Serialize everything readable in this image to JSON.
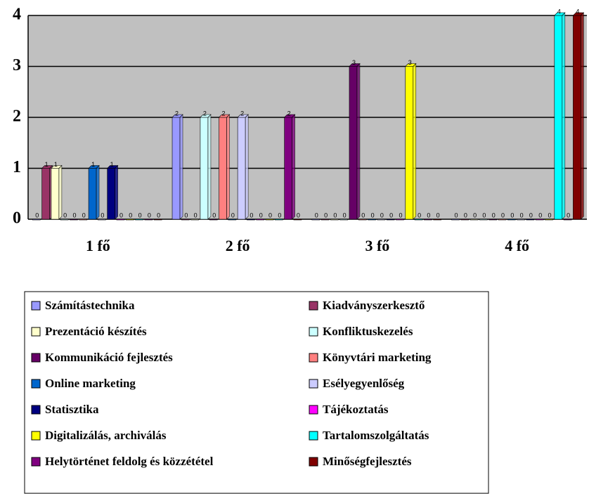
{
  "chart_data": {
    "type": "bar",
    "categories": [
      "1 fő",
      "2 fő",
      "3 fő",
      "4 fő"
    ],
    "ylim": [
      0,
      4
    ],
    "yticks": [
      0,
      1,
      2,
      3,
      4
    ],
    "grid": true,
    "series": [
      {
        "name": "Számítástechnika",
        "color": "#9999ff",
        "values": [
          0,
          2,
          0,
          0
        ]
      },
      {
        "name": "Kiadványszerkesztő",
        "color": "#993366",
        "values": [
          1,
          0,
          0,
          0
        ]
      },
      {
        "name": "Prezentáció készítés",
        "color": "#ffffcc",
        "values": [
          1,
          0,
          0,
          0
        ]
      },
      {
        "name": "Konfliktuskezelés",
        "color": "#ccffff",
        "values": [
          0,
          2,
          0,
          0
        ]
      },
      {
        "name": "Kommunikáció fejlesztés",
        "color": "#660066",
        "values": [
          0,
          0,
          3,
          0
        ]
      },
      {
        "name": "Könyvtári marketing",
        "color": "#ff8080",
        "values": [
          0,
          2,
          0,
          0
        ]
      },
      {
        "name": "Online marketing",
        "color": "#0066cc",
        "values": [
          1,
          0,
          0,
          0
        ]
      },
      {
        "name": "Esélyegyenlőség",
        "color": "#ccccff",
        "values": [
          0,
          2,
          0,
          0
        ]
      },
      {
        "name": "Statisztika",
        "color": "#000080",
        "values": [
          1,
          0,
          0,
          0
        ]
      },
      {
        "name": "Tájékoztatás",
        "color": "#ff00ff",
        "values": [
          0,
          0,
          0,
          0
        ]
      },
      {
        "name": "Digitalizálás, archiválás",
        "color": "#ffff00",
        "values": [
          0,
          0,
          3,
          0
        ]
      },
      {
        "name": "Tartalomszolgáltatás",
        "color": "#00ffff",
        "values": [
          0,
          0,
          0,
          4
        ]
      },
      {
        "name": "Helytörténet feldolg és közzététel",
        "color": "#800080",
        "values": [
          0,
          2,
          0,
          0
        ]
      },
      {
        "name": "Minőségfejlesztés",
        "color": "#800000",
        "values": [
          0,
          0,
          0,
          4
        ]
      }
    ]
  }
}
